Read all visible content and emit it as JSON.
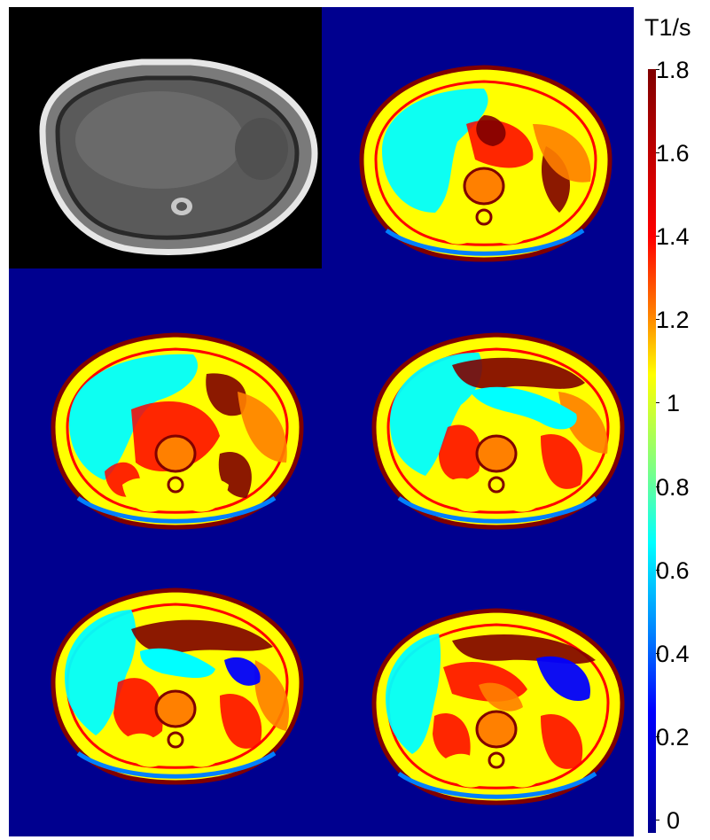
{
  "colorbar": {
    "title": "T1/s",
    "ticks": [
      "1.8",
      "1.6",
      "1.4",
      "1.2",
      "1",
      "0.8",
      "0.6",
      "0.4",
      "0.2",
      "0"
    ],
    "colors": [
      "#800000",
      "#ff0000",
      "#ff8000",
      "#ffff00",
      "#80ff80",
      "#00ffff",
      "#0080ff",
      "#0000ff",
      "#00008f"
    ]
  },
  "background_color": "#00008f",
  "panels": [
    {
      "kind": "magnitude",
      "colors": [
        "#000000",
        "#6e6e6e",
        "#e0e0e0"
      ]
    },
    {
      "kind": "t1-map"
    },
    {
      "kind": "t1-map"
    },
    {
      "kind": "t1-map"
    },
    {
      "kind": "t1-map"
    },
    {
      "kind": "t1-map"
    }
  ]
}
